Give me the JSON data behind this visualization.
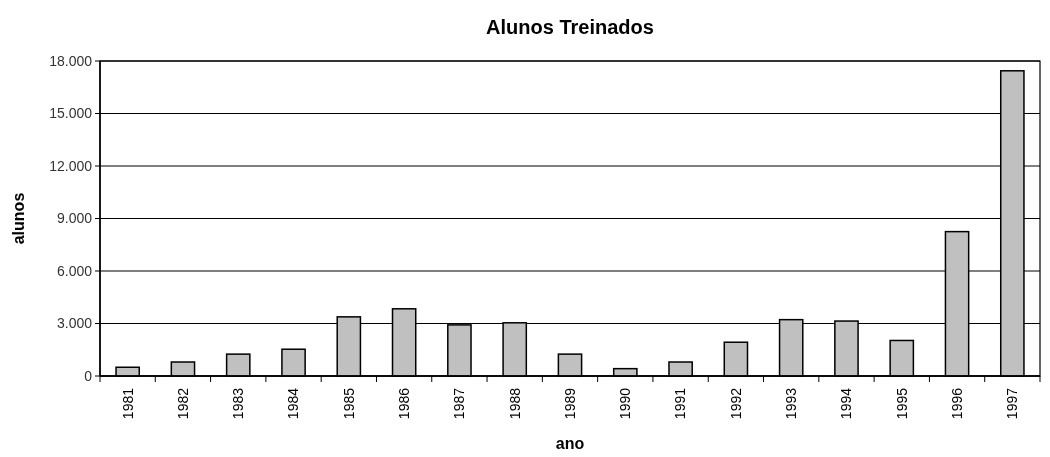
{
  "chart_data": {
    "type": "bar",
    "title": "Alunos Treinados",
    "xlabel": "ano",
    "ylabel": "alunos",
    "categories": [
      "1981",
      "1982",
      "1983",
      "1984",
      "1985",
      "1986",
      "1987",
      "1988",
      "1989",
      "1990",
      "1991",
      "1992",
      "1993",
      "1994",
      "1995",
      "1996",
      "1997"
    ],
    "values": [
      500,
      800,
      1250,
      1530,
      3380,
      3840,
      2920,
      3040,
      1250,
      420,
      800,
      1930,
      3220,
      3140,
      2030,
      8250,
      17440
    ],
    "color": "#c0c0c0",
    "ylim": [
      0,
      18000
    ],
    "yticks": [
      0,
      {
        "value": 3000,
        "label": "3.000"
      },
      {
        "value": 6000,
        "label": "6.000"
      },
      {
        "value": 9000,
        "label": "9.000"
      },
      {
        "value": 12000,
        "label": "12.000"
      },
      {
        "value": 15000,
        "label": "15.000"
      },
      {
        "value": 18000,
        "label": "18.000"
      }
    ],
    "grid": "y"
  }
}
